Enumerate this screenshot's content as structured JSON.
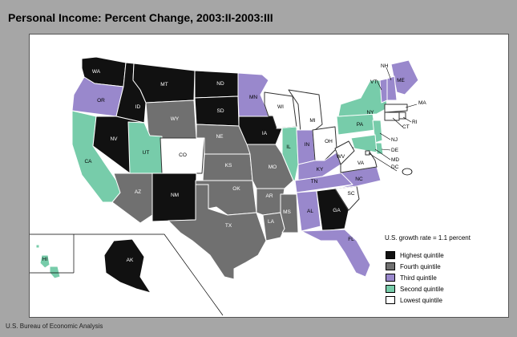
{
  "title": "Personal Income: Percent Change, 2003:II-2003:III",
  "source": "U.S. Bureau of Economic Analysis",
  "note": "U.S. growth rate = 1.1 percent",
  "colors": {
    "highest": "#111111",
    "fourth": "#707070",
    "third": "#9988cc",
    "second": "#77ccaa",
    "lowest": "#ffffff"
  },
  "legend": [
    {
      "key": "highest",
      "label": "Highest quintile"
    },
    {
      "key": "fourth",
      "label": "Fourth quintile"
    },
    {
      "key": "third",
      "label": "Third quintile"
    },
    {
      "key": "second",
      "label": "Second quintile"
    },
    {
      "key": "lowest",
      "label": "Lowest quintile"
    }
  ],
  "states": {
    "WA": "highest",
    "OR": "third",
    "CA": "second",
    "ID": "highest",
    "NV": "highest",
    "MT": "highest",
    "WY": "fourth",
    "UT": "second",
    "CO": "lowest",
    "AZ": "fourth",
    "NM": "highest",
    "ND": "highest",
    "SD": "highest",
    "NE": "fourth",
    "KS": "fourth",
    "OK": "fourth",
    "TX": "fourth",
    "MN": "third",
    "IA": "highest",
    "MO": "fourth",
    "AR": "fourth",
    "LA": "fourth",
    "WI": "lowest",
    "IL": "second",
    "MS": "fourth",
    "MI": "lowest",
    "IN": "third",
    "OH": "lowest",
    "KY": "third",
    "TN": "third",
    "AL": "third",
    "GA": "highest",
    "FL": "third",
    "SC": "lowest",
    "NC": "third",
    "VA": "lowest",
    "WV": "lowest",
    "PA": "second",
    "NY": "second",
    "ME": "third",
    "VT": "third",
    "NH": "third",
    "MA": "lowest",
    "RI": "lowest",
    "CT": "lowest",
    "NJ": "second",
    "DE": "second",
    "MD": "second",
    "DC": "lowest",
    "AK": "highest",
    "HI": "second"
  }
}
